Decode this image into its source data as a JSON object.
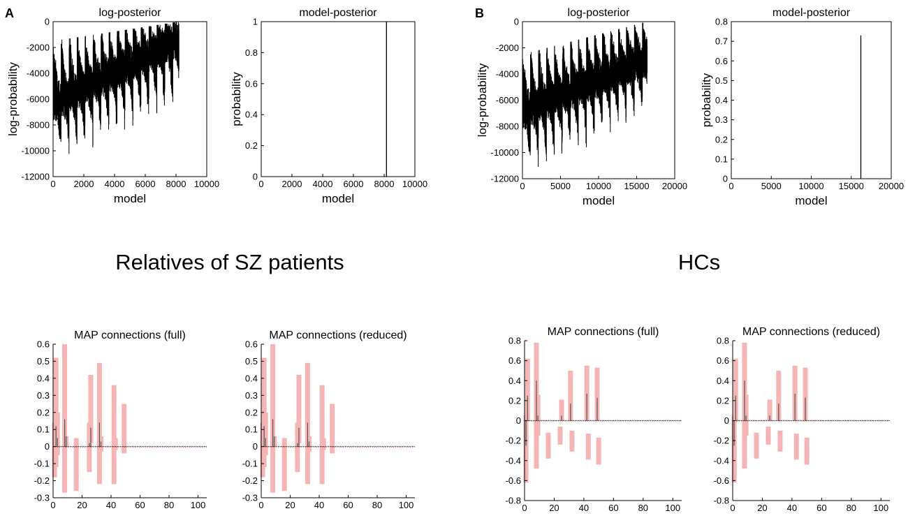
{
  "panels": {
    "a_label": "A",
    "b_label": "B"
  },
  "group_titles": {
    "relatives": "Relatives of SZ patients",
    "hcs": "HCs"
  },
  "chart_data": [
    {
      "id": "a-log",
      "type": "line",
      "title": "log-posterior",
      "xlabel": "model",
      "ylabel": "log-probability",
      "xlim": [
        0,
        10000
      ],
      "ylim": [
        -12000,
        0
      ],
      "xticks": [
        0,
        2000,
        4000,
        6000,
        8000,
        10000
      ],
      "yticks": [
        0,
        -2000,
        -4000,
        -6000,
        -8000,
        -10000,
        -12000
      ],
      "x_end": 8192,
      "envelope": {
        "trend_start": -6500,
        "trend_end": -1500,
        "upper_peak_start": -1500,
        "upper_peak_end": 0,
        "dip_start": -10200,
        "dip_end": -6600,
        "period": 520
      }
    },
    {
      "id": "a-model",
      "type": "bar",
      "title": "model-posterior",
      "xlabel": "model",
      "ylabel": "probability",
      "xlim": [
        0,
        10000
      ],
      "ylim": [
        0,
        1
      ],
      "xticks": [
        0,
        2000,
        4000,
        6000,
        8000,
        10000
      ],
      "yticks": [
        0,
        0.2,
        0.4,
        0.6,
        0.8,
        1
      ],
      "spike": {
        "x": 8150,
        "y": 1.0
      }
    },
    {
      "id": "b-log",
      "type": "line",
      "title": "log-posterior",
      "xlabel": "model",
      "ylabel": "log-probability",
      "xlim": [
        0,
        20000
      ],
      "ylim": [
        -12000,
        0
      ],
      "xticks": [
        0,
        5000,
        10000,
        15000,
        20000
      ],
      "yticks": [
        0,
        -2000,
        -4000,
        -6000,
        -8000,
        -10000,
        -12000
      ],
      "x_end": 16384,
      "envelope": {
        "trend_start": -7000,
        "trend_end": -3000,
        "upper_peak_start": -2500,
        "upper_peak_end": 0,
        "dip_start": -11500,
        "dip_end": -6500,
        "period": 1050
      }
    },
    {
      "id": "b-model",
      "type": "bar",
      "title": "model-posterior",
      "xlabel": "model",
      "ylabel": "probability",
      "xlim": [
        0,
        20000
      ],
      "ylim": [
        0,
        0.8
      ],
      "xticks": [
        0,
        5000,
        10000,
        15000,
        20000
      ],
      "yticks": [
        0,
        0.1,
        0.2,
        0.3,
        0.4,
        0.5,
        0.6,
        0.7,
        0.8
      ],
      "spike": {
        "x": 16200,
        "y": 0.73
      }
    },
    {
      "id": "rel-full",
      "type": "errorbar",
      "title": "MAP connections (full)",
      "xlim": [
        0,
        106
      ],
      "ylim": [
        -0.3,
        0.6
      ],
      "xticks": [
        0,
        20,
        40,
        60,
        80,
        100
      ],
      "yticks": [
        0.6,
        0.5,
        0.4,
        0.3,
        0.2,
        0.1,
        0,
        -0.1,
        -0.2,
        -0.3
      ],
      "connections": [
        {
          "x": 1,
          "mean": 0.0,
          "lo": -0.18,
          "hi": 0.14
        },
        {
          "x": 2,
          "mean": 0.12,
          "lo": -0.12,
          "hi": 0.52
        },
        {
          "x": 3,
          "mean": 0.05,
          "lo": -0.05,
          "hi": 0.2
        },
        {
          "x": 8,
          "mean": 0.16,
          "lo": -0.27,
          "hi": 0.6
        },
        {
          "x": 9,
          "mean": 0.06,
          "lo": 0.0,
          "hi": 0.06
        },
        {
          "x": 16,
          "mean": 0.0,
          "lo": -0.26,
          "hi": 0.05
        },
        {
          "x": 25,
          "mean": 0.02,
          "lo": -0.15,
          "hi": 0.14
        },
        {
          "x": 26,
          "mean": 0.11,
          "lo": 0.02,
          "hi": 0.42
        },
        {
          "x": 32,
          "mean": 0.14,
          "lo": -0.22,
          "hi": 0.49
        },
        {
          "x": 33,
          "mean": 0.03,
          "lo": -0.03,
          "hi": 0.06
        },
        {
          "x": 42,
          "mean": 0.0,
          "lo": -0.22,
          "hi": 0.36
        },
        {
          "x": 43,
          "mean": 0.0,
          "lo": -0.02,
          "hi": 0.05
        },
        {
          "x": 49,
          "mean": 0.0,
          "lo": -0.04,
          "hi": 0.25
        }
      ]
    },
    {
      "id": "rel-reduced",
      "type": "errorbar",
      "title": "MAP connections (reduced)",
      "xlim": [
        0,
        106
      ],
      "ylim": [
        -0.3,
        0.6
      ],
      "xticks": [
        0,
        20,
        40,
        60,
        80,
        100
      ],
      "yticks": [
        0.6,
        0.5,
        0.4,
        0.3,
        0.2,
        0.1,
        0,
        -0.1,
        -0.2,
        -0.3
      ],
      "connections": [
        {
          "x": 1,
          "mean": 0.0,
          "lo": -0.18,
          "hi": 0.14
        },
        {
          "x": 2,
          "mean": 0.12,
          "lo": -0.12,
          "hi": 0.52
        },
        {
          "x": 3,
          "mean": 0.05,
          "lo": -0.05,
          "hi": 0.2
        },
        {
          "x": 8,
          "mean": 0.16,
          "lo": -0.27,
          "hi": 0.6
        },
        {
          "x": 9,
          "mean": 0.06,
          "lo": 0.0,
          "hi": 0.06
        },
        {
          "x": 16,
          "mean": 0.0,
          "lo": -0.26,
          "hi": 0.05
        },
        {
          "x": 25,
          "mean": 0.02,
          "lo": -0.15,
          "hi": 0.14
        },
        {
          "x": 26,
          "mean": 0.11,
          "lo": 0.02,
          "hi": 0.42
        },
        {
          "x": 32,
          "mean": 0.14,
          "lo": -0.22,
          "hi": 0.49
        },
        {
          "x": 33,
          "mean": 0.03,
          "lo": -0.03,
          "hi": 0.06
        },
        {
          "x": 42,
          "mean": 0.0,
          "lo": -0.22,
          "hi": 0.36
        },
        {
          "x": 43,
          "mean": 0.0,
          "lo": -0.02,
          "hi": 0.05
        },
        {
          "x": 49,
          "mean": 0.0,
          "lo": -0.04,
          "hi": 0.25
        }
      ]
    },
    {
      "id": "hc-full",
      "type": "errorbar",
      "title": "MAP connections (full)",
      "xlim": [
        0,
        106
      ],
      "ylim": [
        -0.8,
        0.8
      ],
      "xticks": [
        0,
        20,
        40,
        60,
        80,
        100
      ],
      "yticks": [
        0.8,
        0.6,
        0.4,
        0.2,
        0,
        -0.2,
        -0.4,
        -0.6,
        -0.8
      ],
      "connections": [
        {
          "x": 1,
          "mean": -0.25,
          "lo": -0.62,
          "hi": 0.05
        },
        {
          "x": 2,
          "mean": 0.25,
          "lo": 0.0,
          "hi": 0.62
        },
        {
          "x": 8,
          "mean": 0.4,
          "lo": -0.48,
          "hi": 0.78
        },
        {
          "x": 9,
          "mean": 0.05,
          "lo": -0.15,
          "hi": 0.26
        },
        {
          "x": 16,
          "mean": 0.0,
          "lo": -0.38,
          "hi": -0.12
        },
        {
          "x": 24,
          "mean": 0.0,
          "lo": -0.24,
          "hi": -0.06
        },
        {
          "x": 25,
          "mean": 0.05,
          "lo": 0.0,
          "hi": 0.21
        },
        {
          "x": 31,
          "mean": 0.17,
          "lo": 0.0,
          "hi": 0.5
        },
        {
          "x": 32,
          "mean": 0.0,
          "lo": -0.31,
          "hi": -0.1
        },
        {
          "x": 42,
          "mean": 0.27,
          "lo": 0.0,
          "hi": 0.55
        },
        {
          "x": 43,
          "mean": 0.0,
          "lo": -0.39,
          "hi": -0.13
        },
        {
          "x": 49,
          "mean": 0.23,
          "lo": 0.0,
          "hi": 0.53
        },
        {
          "x": 50,
          "mean": 0.0,
          "lo": -0.44,
          "hi": -0.17
        }
      ]
    },
    {
      "id": "hc-reduced",
      "type": "errorbar",
      "title": "MAP connections (reduced)",
      "xlim": [
        0,
        106
      ],
      "ylim": [
        -0.8,
        0.8
      ],
      "xticks": [
        0,
        20,
        40,
        60,
        80,
        100
      ],
      "yticks": [
        0.8,
        0.6,
        0.4,
        0.2,
        0,
        -0.2,
        -0.4,
        -0.6,
        -0.8
      ],
      "connections": [
        {
          "x": 1,
          "mean": -0.25,
          "lo": -0.62,
          "hi": 0.05
        },
        {
          "x": 2,
          "mean": 0.25,
          "lo": 0.0,
          "hi": 0.62
        },
        {
          "x": 8,
          "mean": 0.4,
          "lo": -0.48,
          "hi": 0.78
        },
        {
          "x": 9,
          "mean": 0.05,
          "lo": -0.15,
          "hi": 0.26
        },
        {
          "x": 16,
          "mean": 0.0,
          "lo": -0.38,
          "hi": -0.12
        },
        {
          "x": 24,
          "mean": 0.0,
          "lo": -0.24,
          "hi": -0.06
        },
        {
          "x": 25,
          "mean": 0.05,
          "lo": 0.0,
          "hi": 0.21
        },
        {
          "x": 31,
          "mean": 0.17,
          "lo": 0.0,
          "hi": 0.5
        },
        {
          "x": 32,
          "mean": 0.0,
          "lo": -0.31,
          "hi": -0.1
        },
        {
          "x": 42,
          "mean": 0.27,
          "lo": 0.0,
          "hi": 0.55
        },
        {
          "x": 43,
          "mean": 0.0,
          "lo": -0.39,
          "hi": -0.13
        },
        {
          "x": 49,
          "mean": 0.23,
          "lo": 0.0,
          "hi": 0.53
        },
        {
          "x": 50,
          "mean": 0.0,
          "lo": -0.44,
          "hi": -0.17
        }
      ]
    }
  ],
  "colors": {
    "errorbar": "#f5b5b5",
    "mean_line": "#555555",
    "zero_line": "#000000",
    "axis": "#000000",
    "trace": "#000000"
  }
}
